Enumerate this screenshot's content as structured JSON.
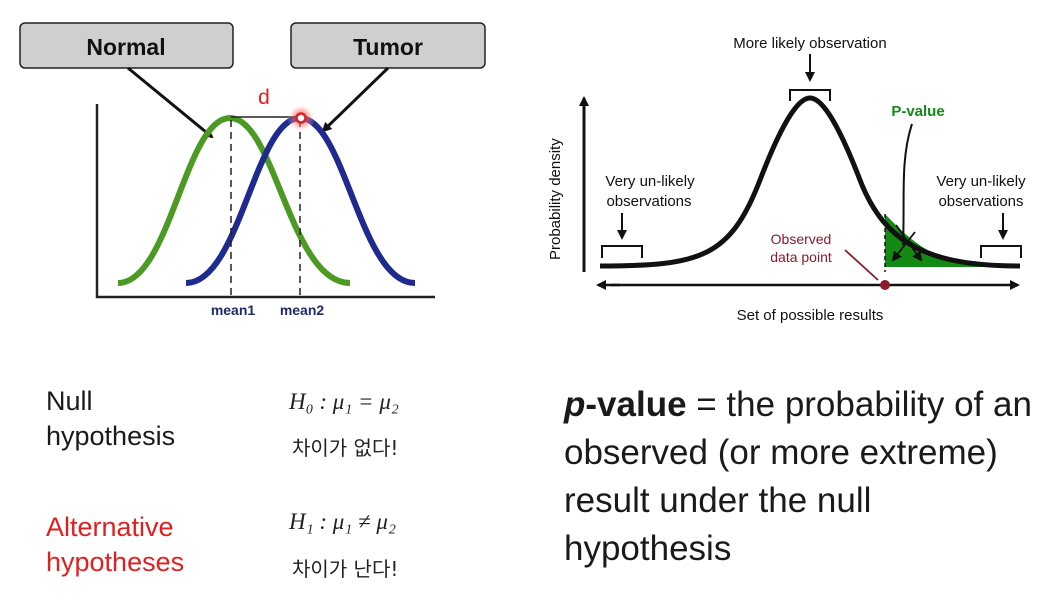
{
  "left_diagram": {
    "box_normal": "Normal",
    "box_tumor": "Tumor",
    "distance_label": "d",
    "mean1_label": "mean1",
    "mean2_label": "mean2",
    "colors": {
      "normal_curve": "#4a9a24",
      "tumor_curve": "#1f2a8f",
      "distance": "#e02020"
    }
  },
  "right_diagram": {
    "top_label": "More likely observation",
    "pvalue_label": "P-value",
    "ylabel": "Probability density",
    "left_unlikely_line1": "Very un-likely",
    "left_unlikely_line2": "observations",
    "right_unlikely_line1": "Very un-likely",
    "right_unlikely_line2": "observations",
    "observed_line1": "Observed",
    "observed_line2": "data point",
    "xlabel": "Set of possible results",
    "colors": {
      "pvalue": "#138a13",
      "observed": "#8b1a2a"
    }
  },
  "hypotheses": {
    "null_line1": "Null",
    "null_line2": "hypothesis",
    "h0_formula": "H₀ : μ₁ = μ₂",
    "h0_korean": "차이가 없다!",
    "alt_line1": "Alternative",
    "alt_line2": "hypotheses",
    "h1_formula": "H₁ : μ₁ ≠ μ₂",
    "h1_korean": "차이가 난다!"
  },
  "definition": {
    "term_p": "p",
    "term_rest": "-value",
    "text": " = the probability of an observed (or more extreme) result under the null hypothesis"
  }
}
